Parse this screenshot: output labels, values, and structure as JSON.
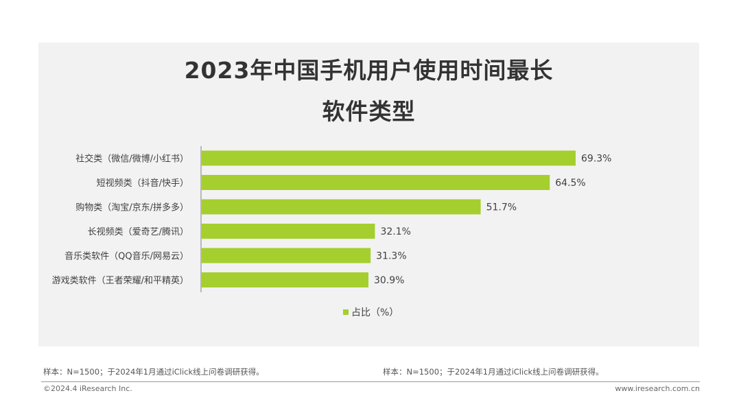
{
  "title_line1": "2023年中国手机用户使用时间最长",
  "title_line2": "软件类型",
  "chart_data": {
    "type": "bar",
    "orientation": "horizontal",
    "categories": [
      "社交类（微信/微博/小红书）",
      "短视频类（抖音/快手）",
      "购物类（淘宝/京东/拼多多）",
      "长视频类（爱奇艺/腾讯）",
      "音乐类软件（QQ音乐/网易云）",
      "游戏类软件（王者荣耀/和平精英）"
    ],
    "series": [
      {
        "name": "占比（%）",
        "values": [
          69.3,
          64.5,
          51.7,
          32.1,
          31.3,
          30.9
        ],
        "labels": [
          "69.3%",
          "64.5%",
          "51.7%",
          "32.1%",
          "31.3%",
          "30.9%"
        ],
        "color": "#a5cf2e"
      }
    ],
    "xlim": [
      0,
      70
    ],
    "legend": "bottom-center",
    "grid": false
  },
  "footer": {
    "note_left": "样本：N=1500；于2024年1月通过iClick线上问卷调研获得。",
    "note_right": "样本：N=1500；于2024年1月通过iClick线上问卷调研获得。",
    "copyright": "©2024.4 iResearch Inc.",
    "website": "www.iresearch.com.cn"
  }
}
